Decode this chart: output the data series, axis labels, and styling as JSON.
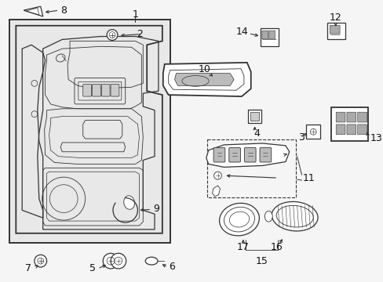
{
  "bg_color": "#f5f5f5",
  "panel_bg": "#e8e8e8",
  "line_color": "#333333",
  "label_color": "#111111",
  "white": "#ffffff",
  "gray_light": "#dddddd",
  "figsize": [
    4.89,
    3.6
  ],
  "dpi": 100
}
